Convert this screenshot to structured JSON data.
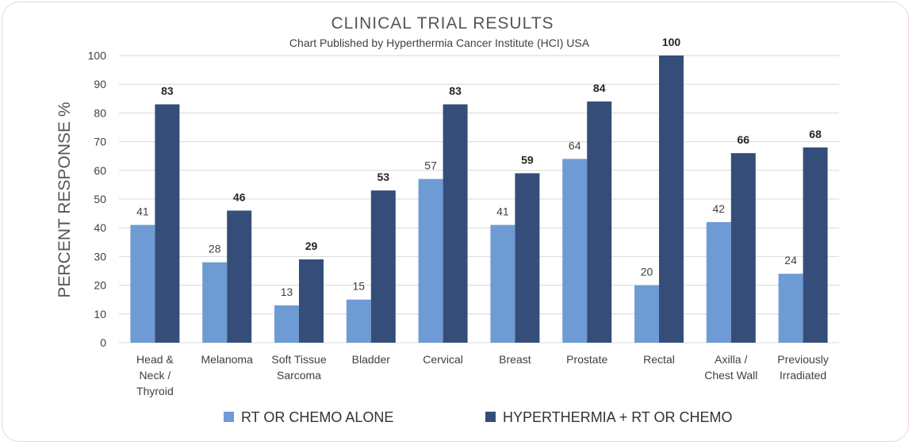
{
  "chart_data": {
    "type": "bar",
    "title": "CLINICAL  TRIAL  RESULTS",
    "subtitle": "Chart Published by Hyperthermia  Cancer Institute (HCI) USA",
    "ylabel": "PERCENT RESPONSE %",
    "xlabel": "",
    "ylim": [
      0,
      100
    ],
    "yticks": [
      0,
      10,
      20,
      30,
      40,
      50,
      60,
      70,
      80,
      90,
      100
    ],
    "grid": true,
    "legend_position": "bottom",
    "categories": [
      [
        "Head &",
        "Neck /",
        "Thyroid"
      ],
      [
        "Melanoma"
      ],
      [
        "Soft Tissue",
        "Sarcoma"
      ],
      [
        "Bladder"
      ],
      [
        "Cervical"
      ],
      [
        "Breast"
      ],
      [
        "Prostate"
      ],
      [
        "Rectal"
      ],
      [
        "Axilla /",
        "Chest Wall"
      ],
      [
        "Previously",
        "Irradiated"
      ]
    ],
    "series": [
      {
        "name": "RT OR CHEMO  ALONE",
        "color": "#6f9bd4",
        "values": [
          41,
          28,
          13,
          15,
          57,
          41,
          64,
          20,
          42,
          24
        ]
      },
      {
        "name": "HYPERTHERMIA + RT OR CHEMO",
        "color": "#344e79",
        "values": [
          83,
          46,
          29,
          53,
          83,
          59,
          84,
          100,
          66,
          68
        ]
      }
    ]
  }
}
